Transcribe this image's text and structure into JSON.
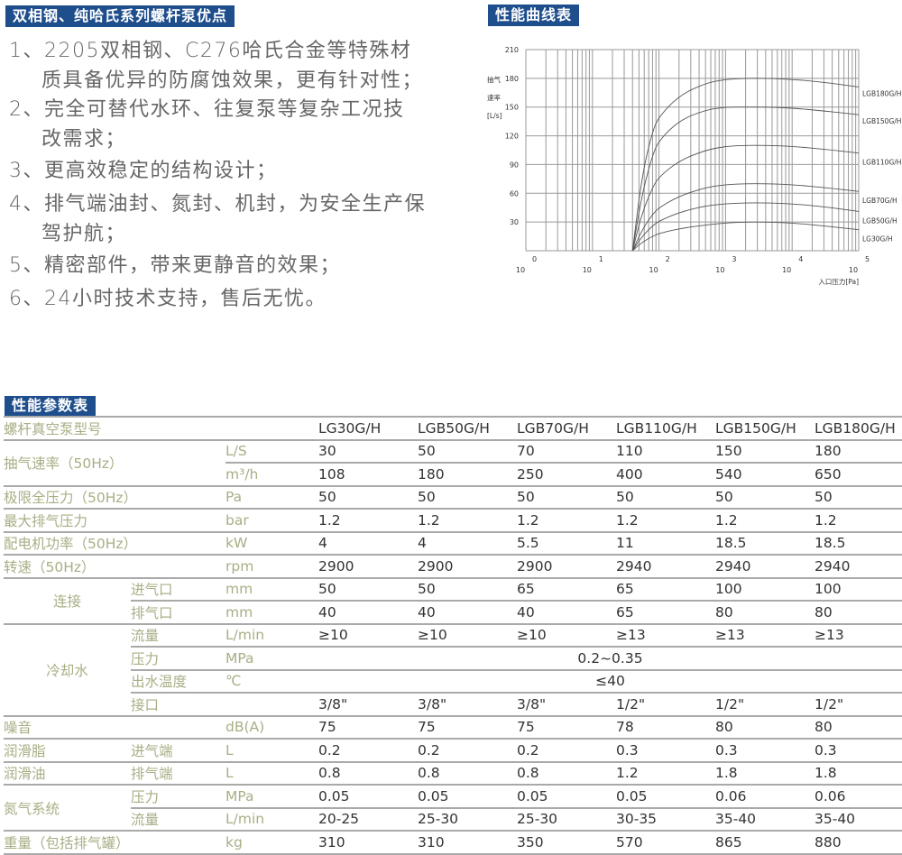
{
  "advantages": {
    "title": "双相钢、纯哈氏系列螺杆泵优点",
    "items": [
      {
        "line1": "1、2205双相钢、C276哈氏合金等特殊材",
        "line2": "质具备优异的防腐蚀效果，更有针对性；"
      },
      {
        "line1": "2、完全可替代水环、往复泵等复杂工况技",
        "line2": "改需求；"
      },
      {
        "line1": "3、更高效稳定的结构设计；"
      },
      {
        "line1": "4、排气端油封、氮封、机封，为安全生产保",
        "line2": "驾护航；"
      },
      {
        "line1": "5、精密部件，带来更静音的效果；"
      },
      {
        "line1": "6、24小时技术支持，售后无忧。"
      }
    ]
  },
  "chart_heading": "性能曲线表",
  "chart_data": {
    "type": "line",
    "title": "",
    "ylabel": [
      "抽气",
      "速率",
      "[L/s]"
    ],
    "xlabel": "入口压力[Pa]",
    "x_scale": "log",
    "xlim": [
      1,
      100000
    ],
    "ylim": [
      0,
      210
    ],
    "yticks": [
      30,
      60,
      90,
      120,
      150,
      180,
      210
    ],
    "xtick_base": "10",
    "xtick_exponents": [
      "0",
      "1",
      "2",
      "3",
      "4",
      "5"
    ],
    "grid": true,
    "x": [
      40,
      56,
      80,
      100,
      200,
      500,
      1000,
      2000,
      4000,
      10000,
      30000,
      100000
    ],
    "series": [
      {
        "name": "LGB180G/H",
        "values": [
          0,
          80,
          125,
          140,
          162,
          175,
          179,
          180,
          180,
          179,
          176,
          171
        ]
      },
      {
        "name": "LGB150G/H",
        "values": [
          0,
          60,
          100,
          115,
          136,
          147,
          150,
          150,
          150,
          149,
          146,
          142
        ]
      },
      {
        "name": "LGB110G/H",
        "values": [
          0,
          40,
          66,
          77,
          94,
          105,
          109,
          110,
          110,
          109,
          106,
          102
        ]
      },
      {
        "name": "LGB70G/H",
        "values": [
          0,
          22,
          38,
          45,
          57,
          66,
          69,
          70,
          70,
          69,
          66,
          62
        ]
      },
      {
        "name": "LGB50G/H",
        "values": [
          0,
          15,
          26,
          31,
          40,
          47,
          49,
          50,
          50,
          49,
          46,
          41
        ]
      },
      {
        "name": "LG30G/H",
        "values": [
          0,
          9,
          15,
          18,
          23,
          27,
          29,
          30,
          30,
          29,
          26,
          22
        ]
      }
    ]
  },
  "spec": {
    "heading": "性能参数表",
    "header_label": "螺杆真空泵型号",
    "models": [
      "LG30G/H",
      "LGB50G/H",
      "LGB70G/H",
      "LGB110G/H",
      "LGB150G/H",
      "LGB180G/H"
    ],
    "rows": [
      {
        "group": "抽气速率（50Hz）",
        "span": 2,
        "sub": "",
        "unit": "L/S",
        "values": [
          "30",
          "50",
          "70",
          "110",
          "150",
          "180"
        ]
      },
      {
        "unit": "m³/h",
        "values": [
          "108",
          "180",
          "250",
          "400",
          "540",
          "650"
        ]
      },
      {
        "group": "极限全压力（50Hz）",
        "span": 1,
        "unit": "Pa",
        "values": [
          "50",
          "50",
          "50",
          "50",
          "50",
          "50"
        ]
      },
      {
        "group": "最大排气压力",
        "span": 1,
        "unit": "bar",
        "values": [
          "1.2",
          "1.2",
          "1.2",
          "1.2",
          "1.2",
          "1.2"
        ]
      },
      {
        "group": "配电机功率（50Hz）",
        "span": 1,
        "unit": "kW",
        "values": [
          "4",
          "4",
          "5.5",
          "11",
          "18.5",
          "18.5"
        ]
      },
      {
        "group": "转速（50Hz）",
        "span": 1,
        "unit": "rpm",
        "values": [
          "2900",
          "2900",
          "2900",
          "2940",
          "2940",
          "2940"
        ]
      },
      {
        "group": "连接",
        "span": 2,
        "center": true,
        "sub": "进气口",
        "unit": "mm",
        "values": [
          "50",
          "50",
          "65",
          "65",
          "100",
          "100"
        ]
      },
      {
        "sub": "排气口",
        "unit": "mm",
        "values": [
          "40",
          "40",
          "40",
          "65",
          "80",
          "80"
        ]
      },
      {
        "group": "冷却水",
        "span": 4,
        "center": true,
        "sub": "流量",
        "unit": "L/min",
        "values": [
          "≥10",
          "≥10",
          "≥10",
          "≥13",
          "≥13",
          "≥13"
        ]
      },
      {
        "sub": "压力",
        "unit": "MPa",
        "merged": "0.2~0.35"
      },
      {
        "sub": "出水温度",
        "unit": "℃",
        "merged": "≤40"
      },
      {
        "sub": "接口",
        "unit": "",
        "values": [
          "3/8\"",
          "3/8\"",
          "3/8\"",
          "1/2\"",
          "1/2\"",
          "1/2\""
        ]
      },
      {
        "group": "噪音",
        "span": 1,
        "unit": "dB(A)",
        "values": [
          "75",
          "75",
          "75",
          "78",
          "80",
          "80"
        ]
      },
      {
        "group": "润滑脂",
        "span": 1,
        "sub": "进气端",
        "unit": "L",
        "values": [
          "0.2",
          "0.2",
          "0.2",
          "0.3",
          "0.3",
          "0.3"
        ]
      },
      {
        "group": "润滑油",
        "span": 1,
        "sub": "排气端",
        "unit": "L",
        "values": [
          "0.8",
          "0.8",
          "0.8",
          "1.2",
          "1.8",
          "1.8"
        ]
      },
      {
        "group": "氮气系统",
        "span": 2,
        "sub": "压力",
        "unit": "MPa",
        "values": [
          "0.05",
          "0.05",
          "0.05",
          "0.05",
          "0.06",
          "0.06"
        ]
      },
      {
        "sub": "流量",
        "unit": "L/min",
        "values": [
          "20-25",
          "25-30",
          "25-30",
          "30-35",
          "35-40",
          "35-40"
        ]
      },
      {
        "group": "重量（包括排气罐）",
        "span": 1,
        "unit": "kg",
        "values": [
          "310",
          "310",
          "350",
          "570",
          "865",
          "880"
        ]
      }
    ]
  },
  "colors": {
    "heading_bg": "#1f4e8c",
    "label": "#a9ae85",
    "value": "#333333",
    "body_text": "#666666"
  }
}
